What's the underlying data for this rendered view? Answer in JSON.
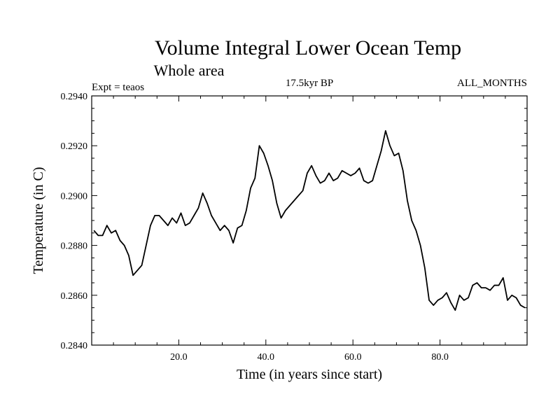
{
  "chart_data": {
    "type": "line",
    "title": "Volume Integral Lower Ocean Temp",
    "subtitle": "Whole area",
    "experiment_label": "Expt = teaos",
    "period_label": "17.5kyr BP",
    "months_label": "ALL_MONTHS",
    "xlabel": "Time (in years since start)",
    "ylabel": "Temperature (in C)",
    "xlim": [
      0,
      100
    ],
    "ylim": [
      0.284,
      0.294
    ],
    "xticks": [
      20,
      40,
      60,
      80
    ],
    "xtick_labels": [
      "20.0",
      "40.0",
      "60.0",
      "80.0"
    ],
    "yticks": [
      0.284,
      0.286,
      0.288,
      0.29,
      0.292,
      0.294
    ],
    "ytick_labels": [
      "0.2840",
      "0.2860",
      "0.2880",
      "0.2900",
      "0.2920",
      "0.2940"
    ],
    "grid": false,
    "series": [
      {
        "name": "Volume Integral Lower Ocean Temp",
        "color": "#000000",
        "x": [
          0.5,
          1.5,
          2.5,
          3.5,
          4.5,
          5.5,
          6.5,
          7.5,
          8.5,
          9.5,
          10.5,
          11.5,
          12.5,
          13.5,
          14.5,
          15.5,
          16.5,
          17.5,
          18.5,
          19.5,
          20.5,
          21.5,
          22.5,
          23.5,
          24.5,
          25.5,
          26.5,
          27.5,
          28.5,
          29.5,
          30.5,
          31.5,
          32.5,
          33.5,
          34.5,
          35.5,
          36.5,
          37.5,
          38.5,
          39.5,
          40.5,
          41.5,
          42.5,
          43.5,
          44.5,
          45.5,
          46.5,
          47.5,
          48.5,
          49.5,
          50.5,
          51.5,
          52.5,
          53.5,
          54.5,
          55.5,
          56.5,
          57.5,
          58.5,
          59.5,
          60.5,
          61.5,
          62.5,
          63.5,
          64.5,
          65.5,
          66.5,
          67.5,
          68.5,
          69.5,
          70.5,
          71.5,
          72.5,
          73.5,
          74.5,
          75.5,
          76.5,
          77.5,
          78.5,
          79.5,
          80.5,
          81.5,
          82.5,
          83.5,
          84.5,
          85.5,
          86.5,
          87.5,
          88.5,
          89.5,
          90.5,
          91.5,
          92.5,
          93.5,
          94.5,
          95.5,
          96.5,
          97.5,
          98.5,
          99.5
        ],
        "values": [
          0.2886,
          0.2884,
          0.2884,
          0.2888,
          0.2885,
          0.2886,
          0.2882,
          0.288,
          0.2876,
          0.2868,
          0.287,
          0.2872,
          0.288,
          0.2888,
          0.2892,
          0.2892,
          0.289,
          0.2888,
          0.2891,
          0.2889,
          0.2893,
          0.2888,
          0.2889,
          0.2892,
          0.2895,
          0.2901,
          0.2897,
          0.2892,
          0.2889,
          0.2886,
          0.2888,
          0.2886,
          0.2881,
          0.2887,
          0.2888,
          0.2894,
          0.2903,
          0.2907,
          0.292,
          0.2917,
          0.2912,
          0.2906,
          0.2897,
          0.2891,
          0.2894,
          0.2896,
          0.2898,
          0.29,
          0.2902,
          0.2909,
          0.2912,
          0.2908,
          0.2905,
          0.2906,
          0.2909,
          0.2906,
          0.2907,
          0.291,
          0.2909,
          0.2908,
          0.2909,
          0.2911,
          0.2906,
          0.2905,
          0.2906,
          0.2912,
          0.2918,
          0.2926,
          0.292,
          0.2916,
          0.2917,
          0.291,
          0.2898,
          0.289,
          0.2886,
          0.288,
          0.2871,
          0.2858,
          0.2856,
          0.2858,
          0.2859,
          0.2861,
          0.2857,
          0.2854,
          0.286,
          0.2858,
          0.2859,
          0.2864,
          0.2865,
          0.2863,
          0.2863,
          0.2862,
          0.2864,
          0.2864,
          0.2867,
          0.2858,
          0.286,
          0.2859,
          0.2856,
          0.2855
        ]
      }
    ]
  }
}
